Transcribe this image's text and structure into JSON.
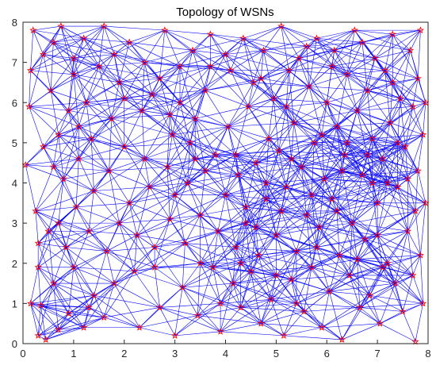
{
  "chart_data": {
    "type": "scatter",
    "title": "Topology of WSNs",
    "xlabel": "",
    "ylabel": "",
    "xlim": [
      0,
      8
    ],
    "ylim": [
      0,
      8
    ],
    "xticks": [
      "0",
      "1",
      "2",
      "3",
      "4",
      "5",
      "6",
      "7",
      "8"
    ],
    "yticks": [
      "0",
      "1",
      "2",
      "3",
      "4",
      "5",
      "6",
      "7",
      "8"
    ],
    "grid": false,
    "node_marker": "star",
    "node_color": "#ff0000",
    "edge_color": "#0000ff",
    "nodes": [
      [
        0.05,
        4.45
      ],
      [
        0.12,
        5.9
      ],
      [
        0.15,
        6.8
      ],
      [
        0.2,
        7.8
      ],
      [
        0.25,
        3.3
      ],
      [
        0.3,
        1.9
      ],
      [
        0.15,
        1.0
      ],
      [
        0.3,
        0.2
      ],
      [
        0.45,
        0.1
      ],
      [
        0.35,
        0.95
      ],
      [
        0.5,
        2.8
      ],
      [
        0.4,
        4.9
      ],
      [
        0.55,
        6.3
      ],
      [
        0.6,
        7.5
      ],
      [
        0.75,
        7.9
      ],
      [
        0.7,
        5.2
      ],
      [
        0.8,
        4.1
      ],
      [
        0.7,
        3.0
      ],
      [
        0.85,
        2.4
      ],
      [
        0.6,
        1.5
      ],
      [
        0.9,
        0.75
      ],
      [
        0.7,
        0.35
      ],
      [
        1.0,
        1.9
      ],
      [
        1.05,
        3.4
      ],
      [
        1.1,
        4.6
      ],
      [
        1.0,
        6.7
      ],
      [
        1.2,
        7.6
      ],
      [
        1.25,
        6.0
      ],
      [
        1.35,
        5.1
      ],
      [
        1.4,
        3.8
      ],
      [
        1.3,
        2.8
      ],
      [
        1.4,
        1.2
      ],
      [
        1.2,
        0.4
      ],
      [
        1.6,
        0.65
      ],
      [
        1.65,
        2.3
      ],
      [
        1.7,
        4.3
      ],
      [
        1.75,
        5.6
      ],
      [
        1.8,
        7.2
      ],
      [
        1.6,
        7.9
      ],
      [
        1.9,
        6.5
      ],
      [
        2.0,
        4.9
      ],
      [
        2.1,
        3.5
      ],
      [
        2.2,
        1.8
      ],
      [
        2.3,
        0.4
      ],
      [
        2.25,
        2.7
      ],
      [
        2.35,
        5.8
      ],
      [
        2.4,
        7.0
      ],
      [
        2.5,
        3.9
      ],
      [
        2.55,
        6.2
      ],
      [
        2.6,
        1.9
      ],
      [
        2.7,
        0.9
      ],
      [
        2.8,
        7.8
      ],
      [
        2.85,
        4.4
      ],
      [
        2.9,
        3.1
      ],
      [
        2.95,
        5.2
      ],
      [
        3.0,
        0.2
      ],
      [
        3.1,
        6.9
      ],
      [
        3.15,
        1.4
      ],
      [
        3.2,
        2.5
      ],
      [
        3.25,
        4.0
      ],
      [
        3.35,
        7.3
      ],
      [
        3.4,
        5.6
      ],
      [
        3.45,
        0.7
      ],
      [
        3.5,
        3.2
      ],
      [
        3.6,
        6.3
      ],
      [
        3.7,
        7.7
      ],
      [
        3.75,
        1.9
      ],
      [
        3.8,
        4.7
      ],
      [
        3.85,
        2.8
      ],
      [
        3.9,
        0.3
      ],
      [
        4.0,
        3.7
      ],
      [
        4.05,
        5.4
      ],
      [
        4.1,
        6.8
      ],
      [
        4.15,
        1.5
      ],
      [
        4.2,
        2.4
      ],
      [
        4.25,
        4.2
      ],
      [
        4.3,
        0.9
      ],
      [
        4.35,
        7.6
      ],
      [
        4.4,
        3.0
      ],
      [
        4.45,
        5.9
      ],
      [
        4.5,
        1.8
      ],
      [
        4.55,
        6.5
      ],
      [
        4.6,
        4.5
      ],
      [
        4.65,
        2.2
      ],
      [
        4.7,
        0.5
      ],
      [
        4.75,
        7.3
      ],
      [
        4.8,
        3.6
      ],
      [
        4.85,
        5.1
      ],
      [
        4.9,
        1.1
      ],
      [
        4.95,
        6.1
      ],
      [
        5.0,
        2.7
      ],
      [
        5.05,
        4.8
      ],
      [
        5.1,
        7.9
      ],
      [
        5.15,
        0.2
      ],
      [
        5.2,
        3.9
      ],
      [
        5.25,
        6.8
      ],
      [
        5.3,
        1.6
      ],
      [
        5.35,
        5.5
      ],
      [
        5.4,
        2.3
      ],
      [
        5.45,
        7.1
      ],
      [
        5.5,
        4.4
      ],
      [
        5.55,
        0.8
      ],
      [
        5.6,
        3.2
      ],
      [
        5.65,
        6.4
      ],
      [
        5.7,
        1.9
      ],
      [
        5.75,
        5.0
      ],
      [
        5.8,
        7.6
      ],
      [
        5.85,
        2.9
      ],
      [
        5.9,
        0.4
      ],
      [
        5.95,
        4.1
      ],
      [
        6.0,
        6.0
      ],
      [
        6.05,
        1.3
      ],
      [
        6.1,
        3.6
      ],
      [
        6.15,
        7.3
      ],
      [
        6.2,
        5.4
      ],
      [
        6.25,
        2.2
      ],
      [
        6.3,
        0.1
      ],
      [
        6.35,
        4.7
      ],
      [
        6.4,
        6.7
      ],
      [
        6.45,
        1.7
      ],
      [
        6.5,
        3.0
      ],
      [
        6.55,
        7.8
      ],
      [
        6.6,
        5.8
      ],
      [
        6.65,
        0.9
      ],
      [
        6.7,
        4.2
      ],
      [
        6.75,
        2.6
      ],
      [
        6.8,
        6.3
      ],
      [
        6.85,
        1.2
      ],
      [
        6.9,
        5.1
      ],
      [
        6.95,
        7.1
      ],
      [
        7.0,
        3.5
      ],
      [
        7.05,
        0.5
      ],
      [
        7.1,
        4.6
      ],
      [
        7.15,
        6.8
      ],
      [
        7.2,
        2.0
      ],
      [
        7.25,
        5.5
      ],
      [
        7.3,
        7.7
      ],
      [
        7.35,
        1.5
      ],
      [
        7.4,
        3.9
      ],
      [
        7.45,
        6.1
      ],
      [
        7.5,
        0.8
      ],
      [
        7.55,
        4.9
      ],
      [
        7.6,
        2.8
      ],
      [
        7.65,
        7.3
      ],
      [
        7.7,
        1.7
      ],
      [
        7.7,
        5.9
      ],
      [
        7.75,
        3.3
      ],
      [
        7.75,
        0.05
      ],
      [
        7.8,
        6.6
      ],
      [
        7.8,
        4.3
      ],
      [
        7.85,
        2.2
      ],
      [
        7.85,
        7.8
      ],
      [
        7.9,
        1.0
      ],
      [
        7.9,
        5.2
      ],
      [
        7.95,
        3.5
      ],
      [
        7.95,
        6.0
      ],
      [
        7.6,
        4.1
      ],
      [
        7.4,
        5.0
      ],
      [
        7.1,
        1.9
      ],
      [
        6.9,
        4.0
      ],
      [
        0.9,
        5.8
      ],
      [
        1.5,
        6.9
      ],
      [
        2.1,
        7.5
      ],
      [
        2.7,
        6.6
      ],
      [
        3.3,
        5.0
      ],
      [
        3.6,
        4.3
      ],
      [
        4.2,
        4.7
      ],
      [
        4.8,
        4.0
      ],
      [
        5.3,
        4.6
      ],
      [
        5.9,
        5.2
      ],
      [
        6.4,
        5.0
      ],
      [
        0.3,
        2.5
      ],
      [
        0.6,
        4.4
      ],
      [
        1.1,
        5.4
      ],
      [
        1.9,
        3.0
      ],
      [
        2.4,
        4.6
      ],
      [
        3.0,
        3.7
      ],
      [
        3.5,
        2.0
      ],
      [
        3.9,
        1.0
      ],
      [
        4.3,
        2.0
      ],
      [
        4.6,
        2.9
      ],
      [
        5.0,
        1.7
      ],
      [
        5.4,
        1.0
      ],
      [
        5.8,
        2.4
      ],
      [
        6.2,
        3.3
      ],
      [
        6.6,
        2.1
      ],
      [
        7.0,
        2.7
      ],
      [
        1.3,
        0.9
      ],
      [
        1.8,
        1.5
      ],
      [
        2.6,
        2.4
      ],
      [
        3.1,
        6.0
      ],
      [
        3.7,
        6.9
      ],
      [
        4.0,
        7.2
      ],
      [
        4.7,
        6.6
      ],
      [
        5.2,
        5.9
      ],
      [
        5.6,
        7.4
      ],
      [
        6.1,
        6.9
      ],
      [
        6.7,
        7.5
      ],
      [
        7.3,
        6.5
      ],
      [
        0.4,
        7.2
      ],
      [
        1.0,
        7.1
      ],
      [
        2.0,
        6.1
      ],
      [
        2.9,
        5.7
      ],
      [
        3.4,
        4.6
      ],
      [
        4.4,
        3.4
      ],
      [
        5.1,
        3.3
      ],
      [
        5.7,
        3.7
      ],
      [
        6.3,
        4.3
      ],
      [
        6.8,
        4.7
      ],
      [
        7.2,
        4.0
      ]
    ]
  }
}
